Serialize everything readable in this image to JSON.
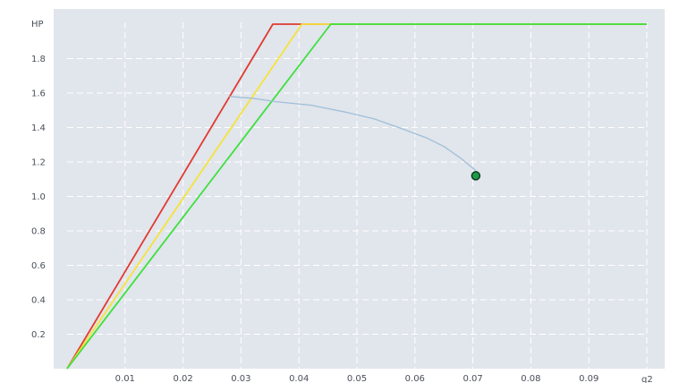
{
  "chart_data": {
    "type": "line",
    "xlabel": "q2",
    "ylabel": "HP",
    "xlim": [
      0,
      0.1
    ],
    "ylim": [
      0,
      2.0
    ],
    "x_ticks": [
      {
        "value": 0.01,
        "label": "0.01"
      },
      {
        "value": 0.02,
        "label": "0.02"
      },
      {
        "value": 0.03,
        "label": "0.03"
      },
      {
        "value": 0.04,
        "label": "0.04"
      },
      {
        "value": 0.05,
        "label": "0.05"
      },
      {
        "value": 0.06,
        "label": "0.06"
      },
      {
        "value": 0.07,
        "label": "0.07"
      },
      {
        "value": 0.08,
        "label": "0.08"
      },
      {
        "value": 0.09,
        "label": "0.09"
      }
    ],
    "y_ticks": [
      {
        "value": 0.2,
        "label": "0.2"
      },
      {
        "value": 0.4,
        "label": "0.4"
      },
      {
        "value": 0.6,
        "label": "0.6"
      },
      {
        "value": 0.8,
        "label": "0.8"
      },
      {
        "value": 1.0,
        "label": "1.0"
      },
      {
        "value": 1.2,
        "label": "1.2"
      },
      {
        "value": 1.4,
        "label": "1.4"
      },
      {
        "value": 1.6,
        "label": "1.6"
      },
      {
        "value": 1.8,
        "label": "1.8"
      }
    ],
    "grid": true,
    "series": [
      {
        "key": "red",
        "color": "#e03a30",
        "x": [
          0.0,
          0.0355,
          0.1
        ],
        "y": [
          0.0,
          2.0,
          2.0
        ]
      },
      {
        "key": "yellow",
        "color": "#f5e33a",
        "x": [
          0.0,
          0.0405,
          0.1
        ],
        "y": [
          0.0,
          2.0,
          2.0
        ]
      },
      {
        "key": "green",
        "color": "#3de03d",
        "x": [
          0.0,
          0.0455,
          0.1
        ],
        "y": [
          0.0,
          2.0,
          2.0
        ]
      },
      {
        "key": "trajectory",
        "color": "#9fbfd8",
        "x": [
          0.028,
          0.032,
          0.036,
          0.042,
          0.048,
          0.053,
          0.058,
          0.062,
          0.065,
          0.068,
          0.0705
        ],
        "y": [
          1.58,
          1.57,
          1.55,
          1.53,
          1.49,
          1.45,
          1.39,
          1.34,
          1.29,
          1.22,
          1.15
        ]
      }
    ],
    "current_point": {
      "x": 0.0705,
      "y": 1.12,
      "fill": "#1f9a4a",
      "stroke": "#0d3d1e"
    },
    "colors": {
      "plot_background": "#e1e5ec",
      "grid": "#ffffff",
      "tick_text": "#4a4f58",
      "page_background": "#ffffff"
    }
  }
}
